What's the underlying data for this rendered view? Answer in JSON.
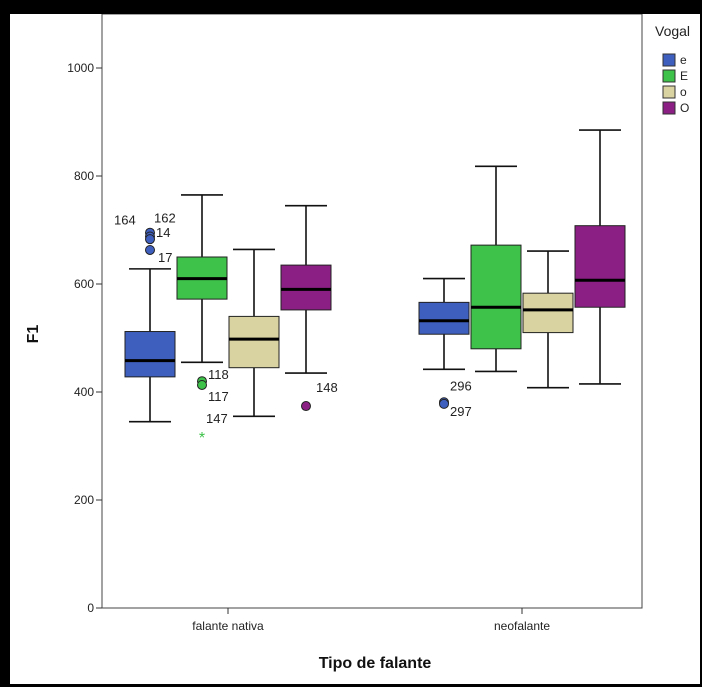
{
  "chart_data": {
    "type": "boxplot",
    "xlabel": "Tipo de falante",
    "ylabel": "F1",
    "ylim": [
      0,
      1100
    ],
    "yticks": [
      0,
      200,
      400,
      600,
      800,
      1000
    ],
    "categories": [
      "falante nativa",
      "neofalante"
    ],
    "legend": {
      "title": "Vogal",
      "position": "top-right"
    },
    "series": [
      {
        "name": "e",
        "color": "#3f5fbf",
        "boxes": [
          {
            "category": "falante nativa",
            "whisker_low": 345,
            "q1": 428,
            "median": 458,
            "q3": 512,
            "whisker_high": 628
          },
          {
            "category": "neofalante",
            "whisker_low": 442,
            "q1": 507,
            "median": 532,
            "q3": 566,
            "whisker_high": 610
          }
        ]
      },
      {
        "name": "E",
        "color": "#3ec24a",
        "boxes": [
          {
            "category": "falante nativa",
            "whisker_low": 455,
            "q1": 572,
            "median": 610,
            "q3": 650,
            "whisker_high": 765
          },
          {
            "category": "neofalante",
            "whisker_low": 438,
            "q1": 480,
            "median": 557,
            "q3": 672,
            "whisker_high": 818
          }
        ]
      },
      {
        "name": "o",
        "color": "#d8d3a0",
        "boxes": [
          {
            "category": "falante nativa",
            "whisker_low": 355,
            "q1": 445,
            "median": 498,
            "q3": 540,
            "whisker_high": 664
          },
          {
            "category": "neofalante",
            "whisker_low": 408,
            "q1": 510,
            "median": 552,
            "q3": 583,
            "whisker_high": 661
          }
        ]
      },
      {
        "name": "O",
        "color": "#8b1f84",
        "boxes": [
          {
            "category": "falante nativa",
            "whisker_low": 435,
            "q1": 552,
            "median": 590,
            "q3": 635,
            "whisker_high": 745
          },
          {
            "category": "neofalante",
            "whisker_low": 415,
            "q1": 557,
            "median": 607,
            "q3": 708,
            "whisker_high": 885
          }
        ]
      }
    ],
    "outliers": [
      {
        "series": "e",
        "category": "falante nativa",
        "value": 695,
        "label": "164",
        "marker": "circle"
      },
      {
        "series": "e",
        "category": "falante nativa",
        "value": 688,
        "label": "162",
        "marker": "circle"
      },
      {
        "series": "e",
        "category": "falante nativa",
        "value": 683,
        "label": "14",
        "marker": "circle"
      },
      {
        "series": "e",
        "category": "falante nativa",
        "value": 663,
        "label": "17",
        "marker": "circle"
      },
      {
        "series": "E",
        "category": "falante nativa",
        "value": 420,
        "label": "118",
        "marker": "circle"
      },
      {
        "series": "E",
        "category": "falante nativa",
        "value": 413,
        "label": "117",
        "marker": "circle"
      },
      {
        "series": "E",
        "category": "falante nativa",
        "value": 317,
        "label": "147",
        "marker": "star"
      },
      {
        "series": "O",
        "category": "falante nativa",
        "value": 374,
        "label": "148",
        "marker": "circle"
      },
      {
        "series": "e",
        "category": "neofalante",
        "value": 381,
        "label": "296",
        "marker": "circle"
      },
      {
        "series": "e",
        "category": "neofalante",
        "value": 378,
        "label": "297",
        "marker": "circle"
      }
    ]
  }
}
